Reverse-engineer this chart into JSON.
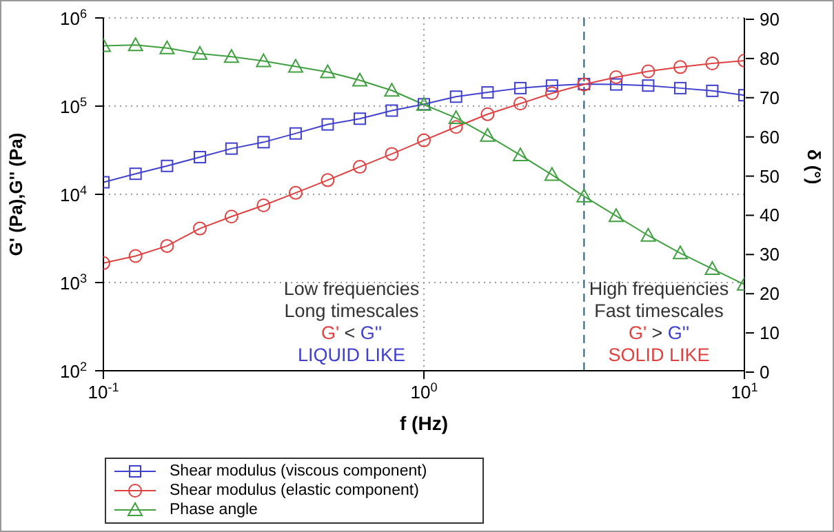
{
  "chart_data": {
    "type": "line",
    "xlabel": "f (Hz)",
    "ylabel": "G' (Pa),G'' (Pa)",
    "y2label": "δ (°)",
    "x": [
      0.1,
      0.126,
      0.158,
      0.2,
      0.251,
      0.316,
      0.398,
      0.501,
      0.631,
      0.794,
      1.0,
      1.26,
      1.58,
      2.0,
      2.51,
      3.16,
      3.98,
      5.01,
      6.31,
      7.94,
      10
    ],
    "series": [
      {
        "name": "Shear modulus (viscous component)",
        "color": "#4040d0",
        "marker": "square",
        "values": [
          13700,
          17100,
          21000,
          26400,
          33000,
          39000,
          49000,
          62000,
          72000,
          89000,
          105000,
          128000,
          143000,
          160000,
          171000,
          178000,
          176000,
          171000,
          160000,
          149000,
          133000
        ]
      },
      {
        "name": "Shear modulus (elastic component)",
        "color": "#e04040",
        "marker": "circle",
        "values": [
          1660,
          2000,
          2600,
          4100,
          5600,
          7500,
          10400,
          14500,
          20500,
          28700,
          41000,
          58000,
          81000,
          107000,
          140000,
          176000,
          213000,
          248000,
          277000,
          305000,
          328000
        ]
      },
      {
        "name": "Phase angle",
        "color": "#40a040",
        "marker": "triangle",
        "axis": "y2",
        "values": [
          82.9,
          83.1,
          82.3,
          80.9,
          80.1,
          79,
          77.6,
          76.2,
          74.1,
          71.5,
          67.9,
          64.5,
          60,
          55,
          50,
          44.5,
          39.5,
          34.5,
          30,
          26,
          22
        ]
      }
    ],
    "log": "xy",
    "xlim": [
      0.1,
      10
    ],
    "xticks": [
      {
        "value": 0.1,
        "label": "10$^{-1}$"
      },
      {
        "value": 1,
        "label": "10$^{0}$"
      },
      {
        "value": 10,
        "label": "10$^{1}$"
      }
    ],
    "ylim": [
      100,
      1000000
    ],
    "yticks": [
      {
        "value": 100,
        "label": "10$^{2}$"
      },
      {
        "value": 1000,
        "label": "10$^{3}$"
      },
      {
        "value": 10000,
        "label": "10$^{4}$"
      },
      {
        "value": 100000,
        "label": "10$^{5}$"
      },
      {
        "value": 1000000,
        "label": "10$^{6}$"
      }
    ],
    "y2lim": [
      0,
      90
    ],
    "y2ticks": [
      0,
      10,
      20,
      30,
      40,
      50,
      60,
      70,
      80,
      90
    ],
    "ref_lines": [
      {
        "axis": "x",
        "value": 3.16,
        "color": "#1f5f7a",
        "line_style": "dashed"
      }
    ],
    "grid": true,
    "legend": "bottom left",
    "line_style": "solid",
    "annotations": [
      "Low frequencies",
      "Long timescales",
      "G' < G''",
      "LIQUID LIKE",
      "High frequencies",
      "Fast timescales",
      "G' > G''",
      "SOLID LIKE"
    ]
  }
}
